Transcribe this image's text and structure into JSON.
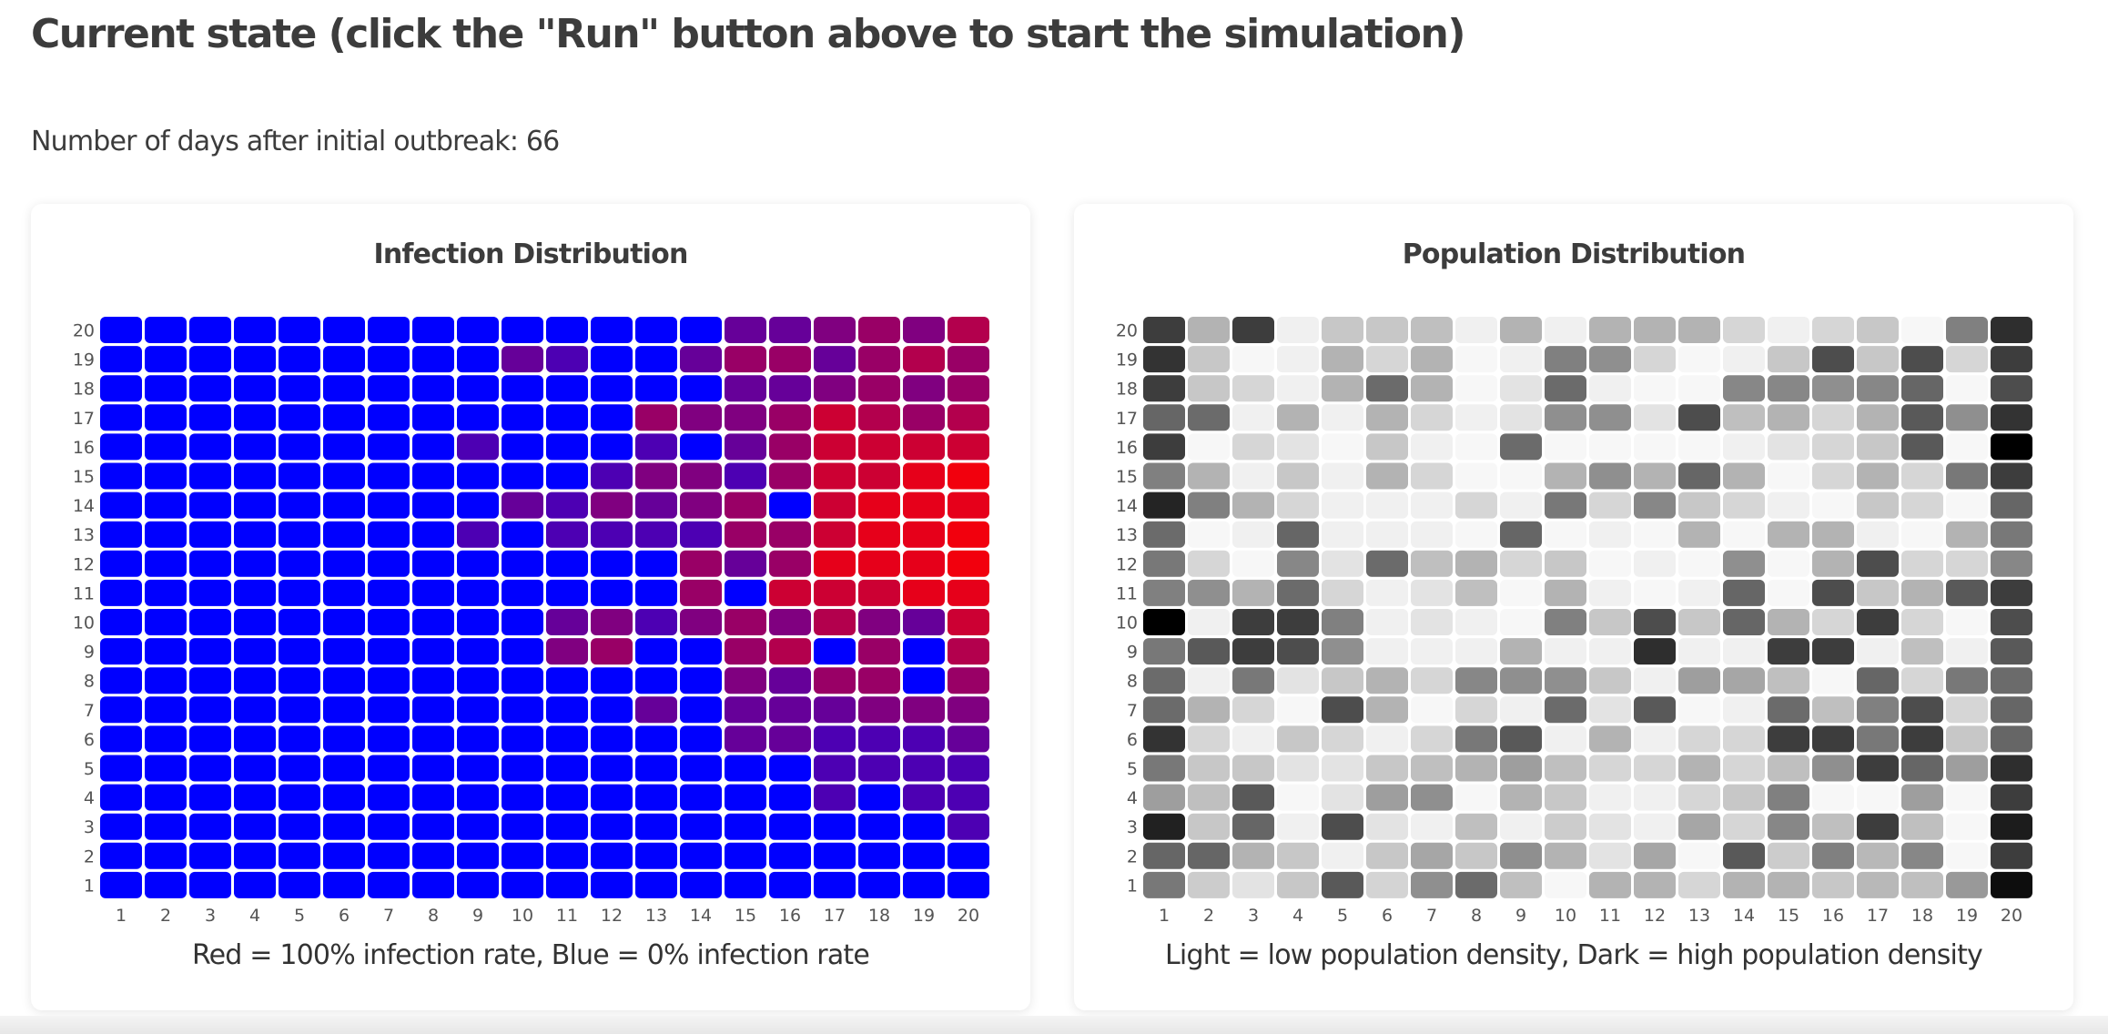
{
  "page": {
    "heading": "Current state (click the \"Run\" button above to start the simulation)",
    "days_text": "Number of days after initial outbreak: 66"
  },
  "chart_data": [
    {
      "type": "heatmap",
      "title": "Infection Distribution",
      "caption": "Red = 100% infection rate, Blue = 0% infection rate",
      "x": [
        1,
        2,
        3,
        4,
        5,
        6,
        7,
        8,
        9,
        10,
        11,
        12,
        13,
        14,
        15,
        16,
        17,
        18,
        19,
        20
      ],
      "y": [
        1,
        2,
        3,
        4,
        5,
        6,
        7,
        8,
        9,
        10,
        11,
        12,
        13,
        14,
        15,
        16,
        17,
        18,
        19,
        20
      ],
      "value_range": [
        0,
        100
      ],
      "color_low": "#0000ff",
      "color_high": "#ff0000",
      "values": [
        [
          0,
          0,
          0,
          0,
          0,
          0,
          0,
          0,
          0,
          0,
          0,
          0,
          0,
          0,
          0,
          0,
          0,
          0,
          0,
          0
        ],
        [
          0,
          0,
          0,
          0,
          0,
          0,
          0,
          0,
          0,
          0,
          0,
          0,
          0,
          0,
          0,
          0,
          0,
          0,
          0,
          0
        ],
        [
          0,
          0,
          0,
          0,
          0,
          0,
          0,
          0,
          0,
          0,
          0,
          0,
          0,
          0,
          0,
          0,
          0,
          0,
          0,
          30
        ],
        [
          0,
          0,
          0,
          0,
          0,
          0,
          0,
          0,
          0,
          0,
          0,
          0,
          0,
          0,
          0,
          0,
          30,
          0,
          30,
          30
        ],
        [
          0,
          0,
          0,
          0,
          0,
          0,
          0,
          0,
          0,
          0,
          0,
          0,
          0,
          0,
          0,
          0,
          30,
          30,
          30,
          30
        ],
        [
          0,
          0,
          0,
          0,
          0,
          0,
          0,
          0,
          0,
          0,
          0,
          0,
          0,
          0,
          40,
          40,
          30,
          30,
          30,
          40
        ],
        [
          0,
          0,
          0,
          0,
          0,
          0,
          0,
          0,
          0,
          0,
          0,
          0,
          40,
          0,
          40,
          40,
          40,
          50,
          50,
          50
        ],
        [
          0,
          0,
          0,
          0,
          0,
          0,
          0,
          0,
          0,
          0,
          0,
          0,
          0,
          0,
          50,
          40,
          60,
          60,
          0,
          60
        ],
        [
          0,
          0,
          0,
          0,
          0,
          0,
          0,
          0,
          0,
          0,
          50,
          60,
          0,
          0,
          60,
          70,
          0,
          60,
          0,
          70
        ],
        [
          0,
          0,
          0,
          0,
          0,
          0,
          0,
          0,
          0,
          0,
          40,
          50,
          30,
          50,
          60,
          50,
          70,
          50,
          40,
          80
        ],
        [
          0,
          0,
          0,
          0,
          0,
          0,
          0,
          0,
          0,
          0,
          0,
          0,
          0,
          60,
          0,
          80,
          80,
          80,
          90,
          90
        ],
        [
          0,
          0,
          0,
          0,
          0,
          0,
          0,
          0,
          0,
          0,
          0,
          0,
          0,
          60,
          40,
          60,
          90,
          90,
          90,
          95
        ],
        [
          0,
          0,
          0,
          0,
          0,
          0,
          0,
          0,
          30,
          0,
          30,
          30,
          30,
          30,
          60,
          60,
          80,
          90,
          90,
          95
        ],
        [
          0,
          0,
          0,
          0,
          0,
          0,
          0,
          0,
          0,
          40,
          30,
          50,
          40,
          50,
          60,
          0,
          80,
          90,
          90,
          90
        ],
        [
          0,
          0,
          0,
          0,
          0,
          0,
          0,
          0,
          0,
          0,
          0,
          30,
          50,
          50,
          30,
          60,
          80,
          80,
          90,
          95
        ],
        [
          0,
          0,
          0,
          0,
          0,
          0,
          0,
          0,
          30,
          0,
          0,
          0,
          30,
          0,
          40,
          60,
          80,
          80,
          80,
          80
        ],
        [
          0,
          0,
          0,
          0,
          0,
          0,
          0,
          0,
          0,
          0,
          0,
          0,
          60,
          50,
          50,
          60,
          80,
          70,
          60,
          70
        ],
        [
          0,
          0,
          0,
          0,
          0,
          0,
          0,
          0,
          0,
          0,
          0,
          0,
          0,
          0,
          40,
          40,
          50,
          60,
          50,
          60
        ],
        [
          0,
          0,
          0,
          0,
          0,
          0,
          0,
          0,
          0,
          40,
          30,
          0,
          0,
          40,
          60,
          60,
          40,
          60,
          70,
          60
        ],
        [
          0,
          0,
          0,
          0,
          0,
          0,
          0,
          0,
          0,
          0,
          0,
          0,
          0,
          0,
          40,
          40,
          50,
          60,
          50,
          70
        ]
      ]
    },
    {
      "type": "heatmap",
      "title": "Population Distribution",
      "caption": "Light = low population density, Dark = high population density",
      "x": [
        1,
        2,
        3,
        4,
        5,
        6,
        7,
        8,
        9,
        10,
        11,
        12,
        13,
        14,
        15,
        16,
        17,
        18,
        19,
        20
      ],
      "y": [
        1,
        2,
        3,
        4,
        5,
        6,
        7,
        8,
        9,
        10,
        11,
        12,
        13,
        14,
        15,
        16,
        17,
        18,
        19,
        20
      ],
      "value_range": [
        0,
        100
      ],
      "color_low": "#ffffff",
      "color_high": "#000000",
      "values": [
        [
          53,
          20,
          11,
          22,
          65,
          17,
          44,
          58,
          25,
          3,
          30,
          30,
          16,
          30,
          30,
          22,
          28,
          25,
          40,
          95
        ],
        [
          60,
          60,
          30,
          22,
          6,
          22,
          35,
          22,
          44,
          30,
          11,
          35,
          3,
          65,
          20,
          50,
          28,
          47,
          3,
          76
        ],
        [
          87,
          22,
          60,
          6,
          70,
          11,
          6,
          25,
          6,
          20,
          11,
          6,
          35,
          16,
          47,
          25,
          76,
          25,
          3,
          89
        ],
        [
          38,
          25,
          65,
          3,
          11,
          38,
          44,
          3,
          30,
          22,
          6,
          6,
          16,
          22,
          50,
          3,
          3,
          38,
          3,
          76
        ],
        [
          53,
          22,
          22,
          11,
          11,
          22,
          25,
          30,
          38,
          25,
          16,
          16,
          30,
          16,
          25,
          44,
          76,
          60,
          38,
          82
        ],
        [
          80,
          16,
          6,
          22,
          16,
          6,
          16,
          53,
          65,
          6,
          30,
          6,
          16,
          16,
          76,
          76,
          53,
          76,
          22,
          60
        ],
        [
          58,
          30,
          16,
          3,
          70,
          30,
          3,
          16,
          6,
          58,
          11,
          65,
          3,
          6,
          58,
          25,
          50,
          70,
          16,
          60
        ],
        [
          58,
          6,
          53,
          11,
          22,
          30,
          16,
          47,
          44,
          44,
          22,
          6,
          38,
          35,
          25,
          3,
          60,
          16,
          53,
          58
        ],
        [
          53,
          65,
          76,
          70,
          44,
          6,
          6,
          6,
          30,
          6,
          6,
          82,
          6,
          6,
          76,
          76,
          6,
          25,
          6,
          65
        ],
        [
          100,
          6,
          76,
          76,
          50,
          6,
          11,
          6,
          3,
          50,
          22,
          70,
          22,
          60,
          30,
          16,
          76,
          16,
          3,
          70
        ],
        [
          50,
          44,
          30,
          58,
          16,
          6,
          11,
          25,
          3,
          30,
          6,
          3,
          6,
          60,
          3,
          70,
          22,
          30,
          65,
          76
        ],
        [
          53,
          16,
          3,
          47,
          11,
          58,
          25,
          30,
          16,
          22,
          3,
          6,
          3,
          44,
          3,
          30,
          70,
          16,
          16,
          47
        ],
        [
          58,
          3,
          6,
          60,
          6,
          6,
          6,
          3,
          60,
          3,
          6,
          3,
          30,
          3,
          30,
          30,
          6,
          3,
          30,
          53
        ],
        [
          86,
          50,
          30,
          16,
          6,
          6,
          6,
          16,
          6,
          53,
          16,
          47,
          22,
          16,
          6,
          3,
          22,
          16,
          3,
          60
        ],
        [
          50,
          30,
          6,
          22,
          6,
          30,
          16,
          3,
          3,
          30,
          44,
          30,
          60,
          30,
          3,
          16,
          30,
          16,
          53,
          76
        ],
        [
          76,
          3,
          16,
          11,
          3,
          22,
          6,
          3,
          58,
          3,
          3,
          3,
          3,
          6,
          11,
          16,
          22,
          65,
          3,
          100
        ],
        [
          60,
          58,
          6,
          30,
          6,
          30,
          16,
          6,
          11,
          44,
          44,
          11,
          70,
          25,
          30,
          16,
          30,
          65,
          44,
          80
        ],
        [
          76,
          22,
          16,
          6,
          30,
          58,
          30,
          3,
          11,
          58,
          6,
          3,
          3,
          47,
          47,
          44,
          47,
          60,
          3,
          70
        ],
        [
          80,
          22,
          3,
          6,
          30,
          16,
          30,
          3,
          6,
          50,
          44,
          16,
          3,
          6,
          22,
          70,
          22,
          70,
          16,
          76
        ],
        [
          76,
          30,
          76,
          6,
          22,
          22,
          25,
          6,
          30,
          6,
          30,
          30,
          30,
          16,
          6,
          16,
          22,
          3,
          50,
          82
        ]
      ]
    }
  ]
}
